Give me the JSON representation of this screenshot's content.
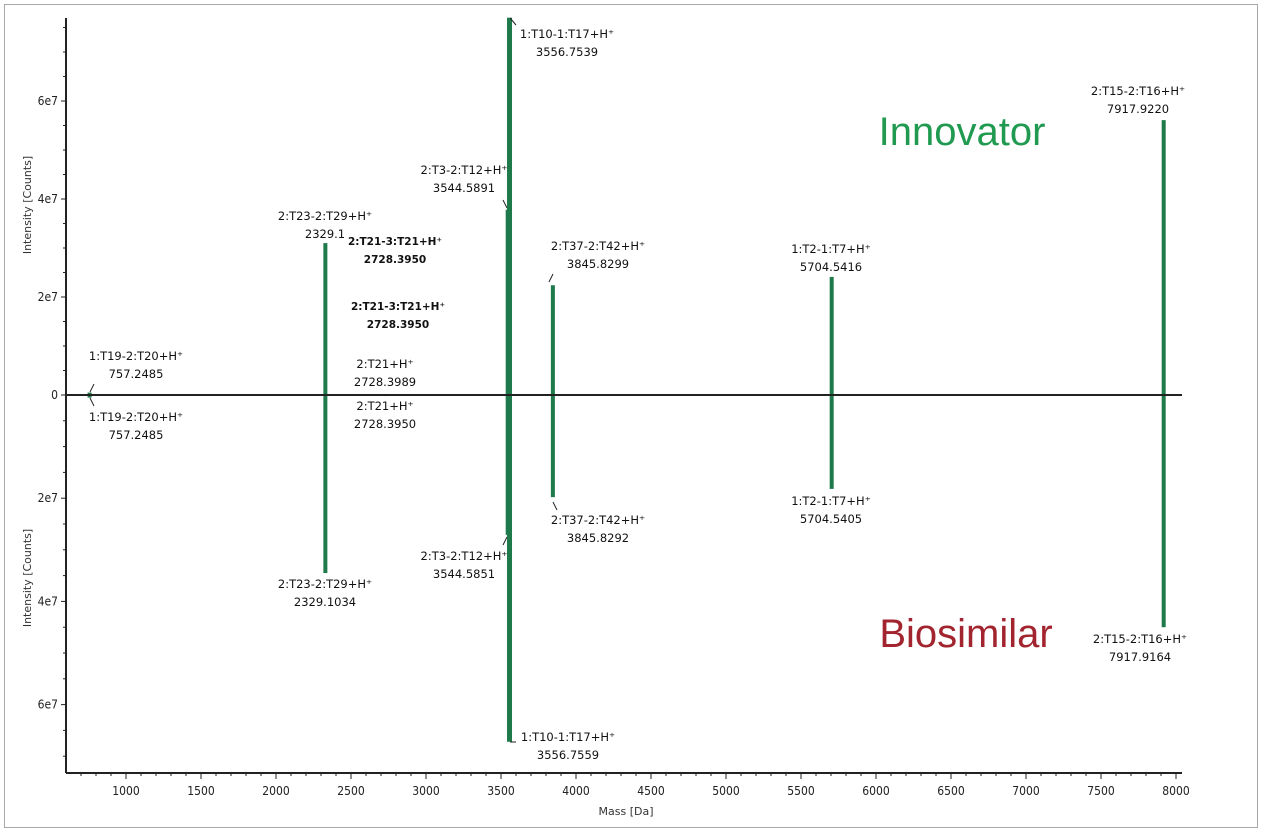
{
  "chart_data": {
    "type": "bar",
    "subtype": "mirror mass spectrum",
    "xlabel": "Mass [Da]",
    "ylabel": "Intensity [Counts]",
    "xlim": [
      620,
      8050
    ],
    "ylim_top": [
      0,
      77000000.0
    ],
    "ylim_bottom": [
      0,
      73500000.0
    ],
    "xticks": [
      "1000",
      "1500",
      "2000",
      "2500",
      "3000",
      "3500",
      "4000",
      "4500",
      "5000",
      "5500",
      "6000",
      "6500",
      "7000",
      "7500",
      "8000"
    ],
    "yticks_top": [
      "0",
      "2e7",
      "4e7",
      "6e7"
    ],
    "yticks_bottom": [
      "2e7",
      "4e7",
      "6e7"
    ],
    "grid": false,
    "colors": {
      "bar": "#1e7a4a",
      "innovator": "#1f9a50",
      "biosimilar": "#a2242f"
    },
    "series": [
      {
        "name": "Innovator",
        "direction": "up",
        "peaks": [
          {
            "mass": 757.2485,
            "intensity": 500000.0,
            "label": "1:T19-2:T20+H⁺",
            "mass_label": "757.2485"
          },
          {
            "mass": 2329.1,
            "intensity": 31000000.0,
            "label": "2:T23-2:T29+H⁺",
            "mass_label": "2329.1"
          },
          {
            "mass": 2728.395,
            "intensity": 200000.0,
            "label": "2:T21-3:T21+H⁺",
            "mass_label": "2728.3950"
          },
          {
            "mass": 2728.395,
            "intensity": 200000.0,
            "label": "2:T21-3:T21+H⁺",
            "mass_label": "2728.3950"
          },
          {
            "mass": 2728.3989,
            "intensity": 200000.0,
            "label": "2:T21+H⁺",
            "mass_label": "2728.3989"
          },
          {
            "mass": 3544.5891,
            "intensity": 37800000.0,
            "label": "2:T3-2:T12+H⁺",
            "mass_label": "3544.5891"
          },
          {
            "mass": 3556.7539,
            "intensity": 77000000.0,
            "label": "1:T10-1:T17+H⁺",
            "mass_label": "3556.7539"
          },
          {
            "mass": 3845.8299,
            "intensity": 22400000.0,
            "label": "2:T37-2:T42+H⁺",
            "mass_label": "3845.8299"
          },
          {
            "mass": 5704.5416,
            "intensity": 24100000.0,
            "label": "1:T2-1:T7+H⁺",
            "mass_label": "5704.5416"
          },
          {
            "mass": 7917.922,
            "intensity": 56100000.0,
            "label": "2:T15-2:T16+H⁺",
            "mass_label": "7917.9220"
          }
        ]
      },
      {
        "name": "Biosimilar",
        "direction": "down",
        "peaks": [
          {
            "mass": 757.2485,
            "intensity": 500000.0,
            "label": "1:T19-2:T20+H⁺",
            "mass_label": "757.2485"
          },
          {
            "mass": 2728.395,
            "intensity": 200000.0,
            "label": "2:T21+H⁺",
            "mass_label": "2728.3950"
          },
          {
            "mass": 2329.1034,
            "intensity": 34500000.0,
            "label": "2:T23-2:T29+H⁺",
            "mass_label": "2329.1034"
          },
          {
            "mass": 3544.5851,
            "intensity": 27100000.0,
            "label": "2:T3-2:T12+H⁺",
            "mass_label": "3544.5851"
          },
          {
            "mass": 3845.8292,
            "intensity": 19800000.0,
            "label": "2:T37-2:T42+H⁺",
            "mass_label": "3845.8292"
          },
          {
            "mass": 3556.7559,
            "intensity": 67200000.0,
            "label": "1:T10-1:T17+H⁺",
            "mass_label": "3556.7559"
          },
          {
            "mass": 5704.5405,
            "intensity": 18200000.0,
            "label": "1:T2-1:T7+H⁺",
            "mass_label": "5704.5405"
          },
          {
            "mass": 7917.9164,
            "intensity": 45000000.0,
            "label": "2:T15-2:T16+H⁺",
            "mass_label": "7917.9164"
          }
        ]
      }
    ]
  }
}
